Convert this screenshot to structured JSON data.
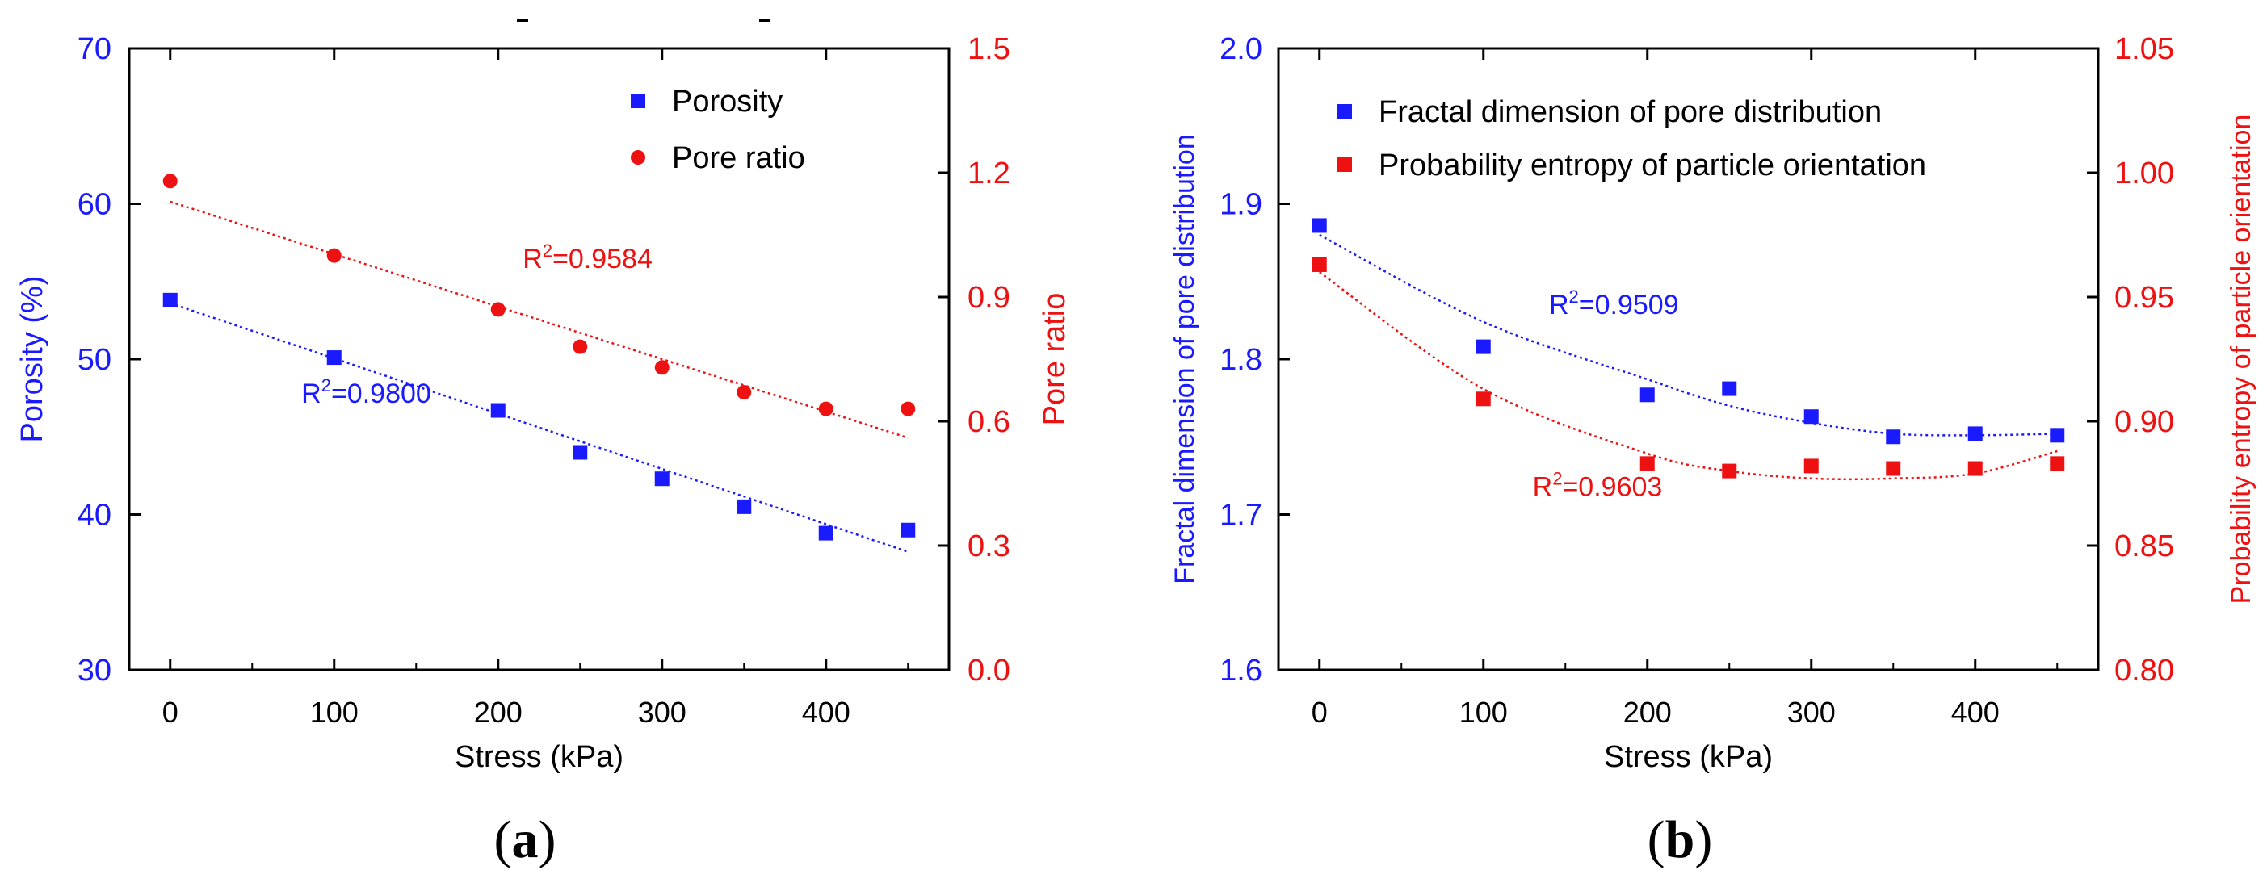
{
  "colors": {
    "left": "#1a1aff",
    "right": "#ee1111",
    "axis": "#000000"
  },
  "chart_data": [
    {
      "type": "scatter",
      "panel_label": "a",
      "xlabel": "Stress (kPa)",
      "ylabel": "Porosity (%)",
      "y2label": "Pore ratio",
      "xlim": [
        -25,
        475
      ],
      "ylim": [
        30,
        70
      ],
      "y2lim": [
        0.0,
        1.5
      ],
      "xticks": [
        0,
        100,
        200,
        300,
        400
      ],
      "yticks": [
        30,
        40,
        50,
        60,
        70
      ],
      "y2ticks": [
        "0.0",
        "0.3",
        "0.6",
        "0.9",
        "1.2",
        "1.5"
      ],
      "x": [
        0,
        100,
        200,
        250,
        300,
        350,
        400,
        450
      ],
      "legend_position": "top-right",
      "series": [
        {
          "name": "Porosity",
          "axis": "left",
          "marker": "square",
          "color": "#1a1aff",
          "values": [
            53.8,
            50.1,
            46.7,
            44.0,
            42.3,
            40.5,
            38.8,
            39.0
          ],
          "fit": {
            "type": "linear",
            "x": [
              0,
              450
            ],
            "y": [
              53.6,
              37.6
            ]
          },
          "r2_label": "R",
          "r2_value": "=0.9800",
          "r2_at": [
            80,
            47.2
          ]
        },
        {
          "name": "Pore ratio",
          "axis": "right",
          "marker": "circle",
          "color": "#ee1111",
          "values": [
            1.18,
            1.0,
            0.87,
            0.78,
            0.73,
            0.67,
            0.63,
            0.63
          ],
          "fit": {
            "type": "linear",
            "x": [
              0,
              450
            ],
            "y": [
              1.13,
              0.56
            ]
          },
          "r2_label": "R",
          "r2_value": "=0.9584",
          "r2_at": [
            215,
            0.97
          ]
        }
      ]
    },
    {
      "type": "scatter",
      "panel_label": "b",
      "xlabel": "Stress (kPa)",
      "ylabel": "Fractal dimension of pore distribution",
      "y2label": "Probability entropy of particle orientation",
      "xlim": [
        -25,
        475
      ],
      "ylim": [
        1.6,
        2.0
      ],
      "y2lim": [
        0.8,
        1.05
      ],
      "xticks": [
        0,
        100,
        200,
        300,
        400
      ],
      "yticks": [
        "1.6",
        "1.7",
        "1.8",
        "1.9",
        "2.0"
      ],
      "y2ticks": [
        "0.80",
        "0.85",
        "0.90",
        "0.95",
        "1.00",
        "1.05"
      ],
      "x": [
        0,
        100,
        200,
        250,
        300,
        350,
        400,
        450
      ],
      "legend_position": "top-left",
      "series": [
        {
          "name": "Fractal dimension of pore distribution",
          "axis": "left",
          "marker": "square",
          "color": "#1a1aff",
          "values": [
            1.886,
            1.808,
            1.777,
            1.781,
            1.763,
            1.75,
            1.752,
            1.751
          ],
          "fit": {
            "type": "quadratic",
            "x": [
              0,
              100,
              200,
              250,
              300,
              350,
              400,
              450
            ],
            "y": [
              1.88,
              1.824,
              1.787,
              1.77,
              1.759,
              1.752,
              1.751,
              1.752
            ]
          },
          "r2_label": "R",
          "r2_value": "=0.9509",
          "r2_at": [
            140,
            1.829
          ]
        },
        {
          "name": "Probability entropy of particle orientation",
          "axis": "right",
          "marker": "square",
          "color": "#ee1111",
          "values": [
            0.963,
            0.909,
            0.883,
            0.88,
            0.882,
            0.881,
            0.881,
            0.883
          ],
          "fit": {
            "type": "quadratic",
            "x": [
              0,
              100,
              200,
              250,
              300,
              350,
              400,
              450
            ],
            "y": [
              0.96,
              0.913,
              0.887,
              0.88,
              0.877,
              0.877,
              0.879,
              0.888
            ]
          },
          "r2_label": "R",
          "r2_value": "=0.9603",
          "r2_at": [
            130,
            0.87
          ]
        }
      ]
    }
  ]
}
